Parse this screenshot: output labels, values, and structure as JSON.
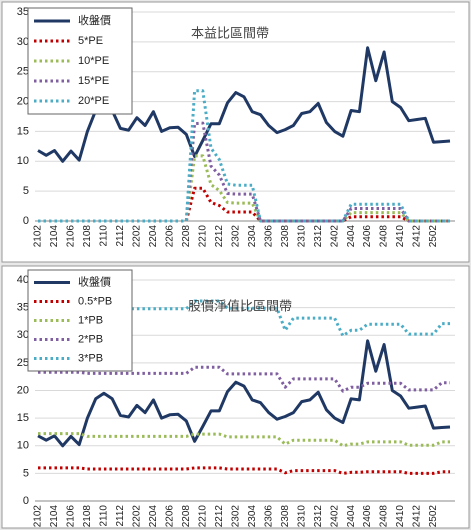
{
  "chart_data": [
    {
      "type": "line",
      "title": "本益比區間帶",
      "categories": [
        "2102",
        null,
        "2104",
        null,
        "2106",
        null,
        "2108",
        null,
        "2110",
        null,
        "2112",
        null,
        "2202",
        null,
        "2204",
        null,
        "2206",
        null,
        "2208",
        null,
        "2210",
        null,
        "2212",
        null,
        "2302",
        null,
        "2304",
        null,
        "2306",
        null,
        "2308",
        null,
        "2310",
        null,
        "2312",
        null,
        "2402",
        null,
        "2404",
        null,
        "2406",
        null,
        "2408",
        null,
        "2410",
        null,
        "2412",
        null,
        "2502",
        null,
        null
      ],
      "series": [
        {
          "name": "收盤價",
          "color": "#1f3864",
          "linestyle": "solid",
          "values": [
            11.8,
            11.0,
            11.8,
            10.0,
            11.7,
            10.2,
            15.0,
            18.5,
            19.5,
            18.5,
            15.5,
            15.2,
            17.3,
            16.0,
            18.3,
            15.0,
            15.6,
            15.7,
            14.5,
            10.8,
            13.5,
            16.3,
            16.3,
            19.8,
            21.5,
            20.8,
            18.3,
            17.8,
            16.0,
            14.8,
            15.3,
            16.0,
            18.0,
            18.3,
            19.7,
            16.5,
            15.0,
            14.2,
            18.5,
            18.3,
            29.0,
            23.5,
            28.3,
            20.0,
            19.0,
            16.8,
            17.0,
            17.2,
            13.2,
            13.3,
            13.4
          ]
        },
        {
          "name": "5*PE",
          "color": "#c00000",
          "linestyle": "dotted",
          "values": [
            0,
            0,
            0,
            0,
            0,
            0,
            0,
            0,
            0,
            0,
            0,
            0,
            0,
            0,
            0,
            0,
            0,
            0,
            0,
            5.5,
            5.5,
            3.1,
            2.6,
            1.5,
            1.5,
            1.5,
            1.5,
            0,
            0,
            0,
            0,
            0,
            0,
            0,
            0,
            0,
            0,
            0,
            0.7,
            0.7,
            0.7,
            0.7,
            0.7,
            0.7,
            0.7,
            0,
            0,
            0,
            0,
            0,
            0
          ]
        },
        {
          "name": "10*PE",
          "color": "#9bbb59",
          "linestyle": "dotted",
          "values": [
            0,
            0,
            0,
            0,
            0,
            0,
            0,
            0,
            0,
            0,
            0,
            0,
            0,
            0,
            0,
            0,
            0,
            0,
            0,
            10.9,
            10.9,
            6.1,
            5.1,
            3.1,
            3.0,
            3.0,
            3.0,
            0,
            0,
            0,
            0,
            0,
            0,
            0,
            0,
            0,
            0,
            0,
            1.4,
            1.4,
            1.4,
            1.4,
            1.4,
            1.4,
            1.4,
            0,
            0,
            0,
            0,
            0,
            0
          ]
        },
        {
          "name": "15*PE",
          "color": "#7f5fa0",
          "linestyle": "dotted",
          "values": [
            0,
            0,
            0,
            0,
            0,
            0,
            0,
            0,
            0,
            0,
            0,
            0,
            0,
            0,
            0,
            0,
            0,
            0,
            0,
            16.3,
            16.4,
            9.2,
            7.7,
            4.6,
            4.5,
            4.5,
            4.5,
            0,
            0,
            0,
            0,
            0,
            0,
            0,
            0,
            0,
            0,
            0,
            2.1,
            2.1,
            2.1,
            2.1,
            2.1,
            2.1,
            2.1,
            0,
            0,
            0,
            0,
            0,
            0
          ]
        },
        {
          "name": "20*PE",
          "color": "#4bacc6",
          "linestyle": "dotted",
          "values": [
            0,
            0,
            0,
            0,
            0,
            0,
            0,
            0,
            0,
            0,
            0,
            0,
            0,
            0,
            0,
            0,
            0,
            0,
            0,
            21.8,
            21.8,
            12.2,
            10.3,
            6.2,
            6.0,
            6.0,
            6.0,
            0,
            0,
            0,
            0,
            0,
            0,
            0,
            0,
            0,
            0,
            0,
            2.8,
            2.8,
            2.8,
            2.8,
            2.8,
            2.8,
            2.8,
            0,
            0,
            0,
            0,
            0,
            0
          ]
        }
      ],
      "ylim": [
        0,
        35
      ],
      "yticks": [
        0,
        5,
        10,
        15,
        20,
        25,
        30,
        35
      ],
      "grid": true,
      "legend": "upper left"
    },
    {
      "type": "line",
      "title": "股價淨值比區間帶",
      "categories": [
        "2102",
        null,
        "2104",
        null,
        "2106",
        null,
        "2108",
        null,
        "2110",
        null,
        "2112",
        null,
        "2202",
        null,
        "2204",
        null,
        "2206",
        null,
        "2208",
        null,
        "2210",
        null,
        "2212",
        null,
        "2302",
        null,
        "2304",
        null,
        "2306",
        null,
        "2308",
        null,
        "2310",
        null,
        "2312",
        null,
        "2402",
        null,
        "2404",
        null,
        "2406",
        null,
        "2408",
        null,
        "2410",
        null,
        "2412",
        null,
        "2502",
        null,
        null
      ],
      "series": [
        {
          "name": "收盤價",
          "color": "#1f3864",
          "linestyle": "solid",
          "values": [
            11.8,
            11.0,
            11.8,
            10.0,
            11.7,
            10.2,
            15.0,
            18.5,
            19.5,
            18.5,
            15.5,
            15.2,
            17.3,
            16.0,
            18.3,
            15.0,
            15.6,
            15.7,
            14.5,
            10.8,
            13.5,
            16.3,
            16.3,
            19.8,
            21.5,
            20.8,
            18.3,
            17.8,
            16.0,
            14.8,
            15.3,
            16.0,
            18.0,
            18.3,
            19.7,
            16.5,
            15.0,
            14.2,
            18.5,
            18.3,
            29.0,
            23.5,
            28.3,
            20.0,
            19.0,
            16.8,
            17.0,
            17.2,
            13.2,
            13.3,
            13.4
          ]
        },
        {
          "name": "0.5*PB",
          "color": "#c00000",
          "linestyle": "dotted",
          "values": [
            6.0,
            6.0,
            6.0,
            6.0,
            6.0,
            6.0,
            5.8,
            5.8,
            5.8,
            5.8,
            5.8,
            5.8,
            5.8,
            5.8,
            5.8,
            5.8,
            5.8,
            5.8,
            5.8,
            6.0,
            6.0,
            6.0,
            6.0,
            5.8,
            5.8,
            5.8,
            5.8,
            5.8,
            5.8,
            5.8,
            5.1,
            5.5,
            5.5,
            5.5,
            5.5,
            5.5,
            5.5,
            5.0,
            5.2,
            5.2,
            5.3,
            5.3,
            5.3,
            5.3,
            5.3,
            5.0,
            5.0,
            5.0,
            5.0,
            5.3,
            5.3
          ]
        },
        {
          "name": "1*PB",
          "color": "#9bbb59",
          "linestyle": "dotted",
          "values": [
            12.2,
            12.2,
            12.2,
            12.2,
            12.2,
            12.2,
            11.7,
            11.7,
            11.7,
            11.7,
            11.7,
            11.7,
            11.7,
            11.7,
            11.7,
            11.7,
            11.7,
            11.7,
            11.7,
            12.1,
            12.1,
            12.1,
            12.1,
            11.6,
            11.6,
            11.6,
            11.6,
            11.6,
            11.6,
            11.6,
            10.3,
            11.0,
            11.0,
            11.0,
            11.0,
            11.0,
            11.0,
            10.0,
            10.3,
            10.3,
            10.7,
            10.7,
            10.7,
            10.7,
            10.7,
            10.1,
            10.1,
            10.1,
            10.1,
            10.7,
            10.7
          ]
        },
        {
          "name": "2*PB",
          "color": "#7f5fa0",
          "linestyle": "dotted",
          "values": [
            23.3,
            23.3,
            23.3,
            23.3,
            23.3,
            23.3,
            23.1,
            23.1,
            23.1,
            23.1,
            23.1,
            23.1,
            23.1,
            23.1,
            23.1,
            23.1,
            23.1,
            23.1,
            23.1,
            24.2,
            24.2,
            24.2,
            24.2,
            23.0,
            23.0,
            23.0,
            23.0,
            23.0,
            23.0,
            23.0,
            20.6,
            22.1,
            22.1,
            22.1,
            22.1,
            22.1,
            22.1,
            19.9,
            20.6,
            20.6,
            21.3,
            21.3,
            21.3,
            21.3,
            21.3,
            20.1,
            20.1,
            20.1,
            20.1,
            21.4,
            21.4
          ]
        },
        {
          "name": "3*PB",
          "color": "#4bacc6",
          "linestyle": "dotted",
          "values": [
            35.0,
            35.0,
            35.0,
            35.0,
            35.0,
            35.0,
            34.8,
            34.8,
            34.8,
            34.8,
            34.8,
            34.8,
            34.8,
            34.8,
            34.8,
            34.8,
            34.8,
            34.8,
            34.8,
            36.2,
            36.2,
            36.2,
            36.2,
            34.9,
            34.9,
            34.9,
            34.9,
            34.9,
            34.9,
            34.9,
            30.9,
            33.1,
            33.1,
            33.1,
            33.1,
            33.1,
            33.1,
            29.9,
            30.9,
            30.9,
            32.0,
            32.0,
            32.0,
            32.0,
            32.0,
            30.2,
            30.2,
            30.2,
            30.2,
            32.1,
            32.1
          ]
        }
      ],
      "ylim": [
        0,
        40
      ],
      "yticks": [
        0,
        5,
        10,
        15,
        20,
        25,
        30,
        35,
        40
      ],
      "grid": true,
      "legend": "upper left"
    }
  ]
}
